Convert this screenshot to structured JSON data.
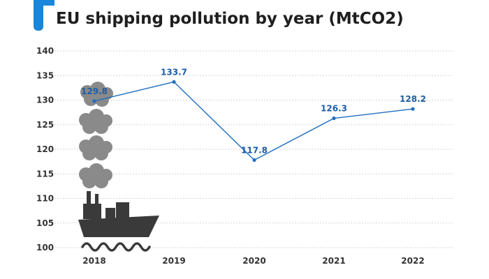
{
  "title": "EU shipping pollution by year (MtCO2)",
  "colors": {
    "accent": "#1a86d9",
    "line": "#1f6fc0",
    "label": "#1d5ea8",
    "grid": "#d6d6d6",
    "smoke": "#8a8a8a",
    "ship": "#3a3a3a"
  },
  "chart_data": {
    "type": "line",
    "title": "EU shipping pollution by year (MtCO2)",
    "xlabel": "",
    "ylabel": "",
    "categories": [
      "2018",
      "2019",
      "2020",
      "2021",
      "2022"
    ],
    "series": [
      {
        "name": "EU shipping pollution (MtCO2)",
        "values": [
          129.8,
          133.7,
          117.8,
          126.3,
          128.2
        ]
      }
    ],
    "value_labels": [
      "129.8",
      "133.7",
      "117.8",
      "126.3",
      "128.2"
    ],
    "ylim": [
      100,
      140
    ],
    "yticks": [
      100,
      105,
      110,
      115,
      120,
      125,
      130,
      135,
      140
    ],
    "ytick_labels": [
      "100",
      "105",
      "110",
      "115",
      "120",
      "125",
      "130",
      "135",
      "140"
    ],
    "grid": true
  },
  "illustration": {
    "icon": "ship-with-smoke-icon"
  }
}
